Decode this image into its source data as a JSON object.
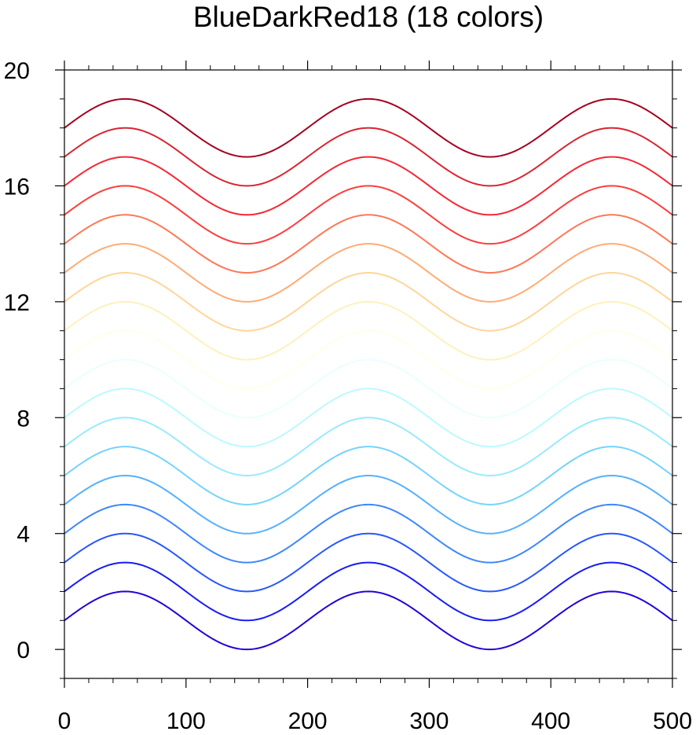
{
  "chart_data": {
    "type": "line",
    "title": "BlueDarkRed18 (18 colors)",
    "xlabel": "",
    "ylabel": "",
    "xlim": [
      0,
      500
    ],
    "ylim": [
      -1,
      20
    ],
    "x_ticks": [
      0,
      100,
      200,
      300,
      400,
      500
    ],
    "x_tick_labels": [
      "0",
      "100",
      "200",
      "300",
      "400",
      "500"
    ],
    "y_ticks": [
      0,
      4,
      8,
      12,
      16,
      20
    ],
    "y_tick_labels": [
      "0",
      "4",
      "8",
      "12",
      "16",
      "20"
    ],
    "x_minor_step": 20,
    "y_minor_step": 1,
    "grid": false,
    "legend": "none",
    "curve": {
      "function": "offset + sin(2*pi*x/200)",
      "amplitude": 1,
      "period": 200,
      "x_range": [
        0,
        500
      ]
    },
    "series": [
      {
        "offset": 1,
        "color": "#2400d8"
      },
      {
        "offset": 2,
        "color": "#181cf7"
      },
      {
        "offset": 3,
        "color": "#2857ff"
      },
      {
        "offset": 4,
        "color": "#3d87ff"
      },
      {
        "offset": 5,
        "color": "#56b0ff"
      },
      {
        "offset": 6,
        "color": "#75d3ff"
      },
      {
        "offset": 7,
        "color": "#99eaff"
      },
      {
        "offset": 8,
        "color": "#bcf9ff"
      },
      {
        "offset": 9,
        "color": "#eaffff"
      },
      {
        "offset": 10,
        "color": "#ffffea"
      },
      {
        "offset": 11,
        "color": "#fff1bc"
      },
      {
        "offset": 12,
        "color": "#ffd699"
      },
      {
        "offset": 13,
        "color": "#ffac75"
      },
      {
        "offset": 14,
        "color": "#ff7856"
      },
      {
        "offset": 15,
        "color": "#ff3d3d"
      },
      {
        "offset": 16,
        "color": "#f72735"
      },
      {
        "offset": 17,
        "color": "#d82632"
      },
      {
        "offset": 18,
        "color": "#a50021"
      }
    ]
  }
}
